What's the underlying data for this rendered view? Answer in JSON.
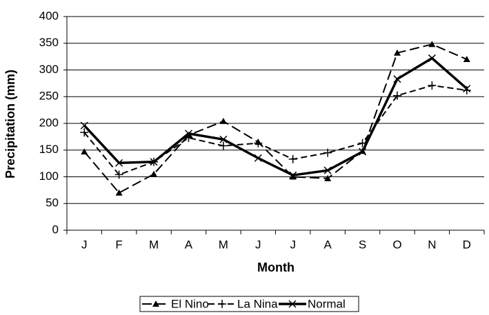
{
  "chart_data": {
    "type": "line",
    "x_label": "Month",
    "y_label": "Precipitation (mm)",
    "categories": [
      "J",
      "F",
      "M",
      "A",
      "M",
      "J",
      "J",
      "A",
      "S",
      "O",
      "N",
      "D"
    ],
    "series": [
      {
        "name": "El Nino",
        "color": "#000000",
        "values": [
          147,
          70,
          105,
          178,
          204,
          165,
          100,
          97,
          148,
          332,
          348,
          320
        ]
      },
      {
        "name": "La Nina",
        "color": "#000000",
        "values": [
          183,
          104,
          128,
          173,
          158,
          163,
          133,
          145,
          163,
          252,
          271,
          262
        ]
      },
      {
        "name": "Normal",
        "color": "#000000",
        "values": [
          196,
          126,
          128,
          181,
          170,
          135,
          103,
          112,
          147,
          283,
          322,
          265
        ]
      }
    ],
    "ylim": [
      0,
      400
    ],
    "yticks": [
      0,
      50,
      100,
      150,
      200,
      250,
      300,
      350,
      400
    ],
    "grid": true,
    "legend": "bottom"
  }
}
